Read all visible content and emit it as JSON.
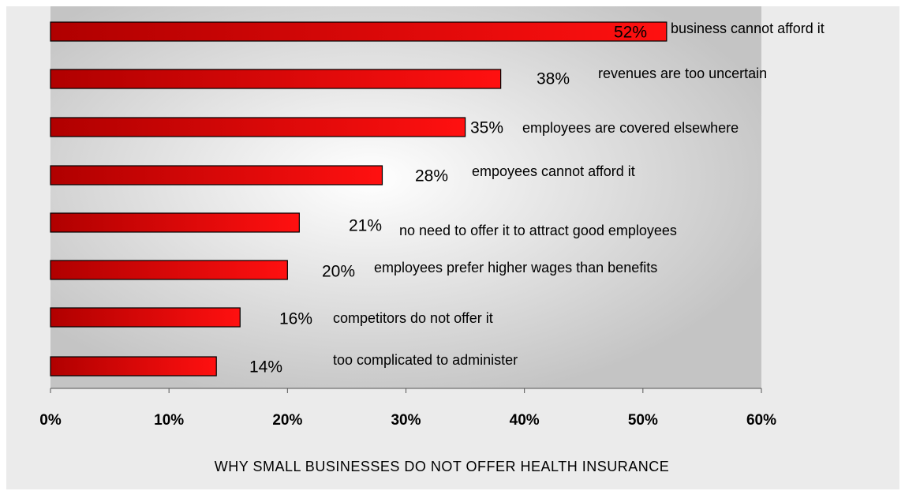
{
  "chart_data": {
    "type": "barh",
    "title": "WHY SMALL BUSINESSES DO NOT OFFER HEALTH INSURANCE",
    "categories": [
      "business cannot afford it",
      "revenues are too uncertain",
      "employees are covered elsewhere",
      "empoyees cannot afford it",
      "no need to offer it to attract good employees",
      "employees prefer higher wages than benefits",
      "competitors do not offer it",
      "too complicated to administer"
    ],
    "values": [
      52,
      38,
      35,
      28,
      21,
      20,
      16,
      14
    ],
    "value_labels": [
      "52%",
      "38%",
      "35%",
      "28%",
      "21%",
      "20%",
      "16%",
      "14%"
    ],
    "color": "#e00000",
    "xlim": [
      0,
      60
    ],
    "xticks": [
      {
        "value": 0,
        "label": "0%"
      },
      {
        "value": 10,
        "label": "10%"
      },
      {
        "value": 20,
        "label": "20%"
      },
      {
        "value": 30,
        "label": "30%"
      },
      {
        "value": 40,
        "label": "40%"
      },
      {
        "value": 50,
        "label": "50%"
      },
      {
        "value": 60,
        "label": "60%"
      }
    ],
    "grid": false
  }
}
